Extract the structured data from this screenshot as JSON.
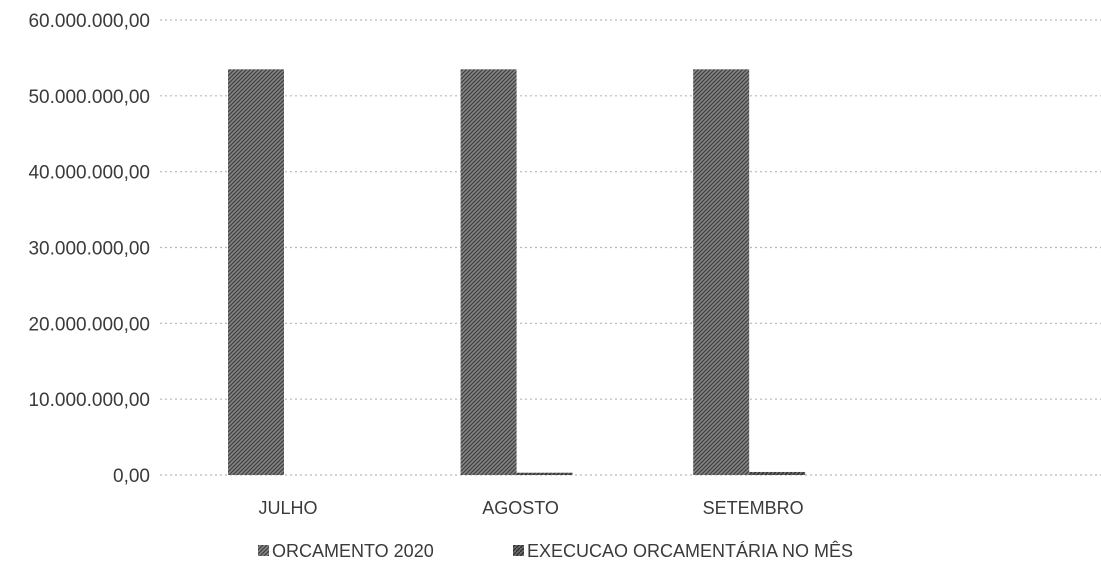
{
  "chart_data": {
    "type": "bar",
    "categories": [
      "JULHO",
      "AGOSTO",
      "SETEMBRO"
    ],
    "series": [
      {
        "name": "ORCAMENTO 2020",
        "values": [
          53500000,
          53500000,
          53500000
        ],
        "color": "#6e6e6e"
      },
      {
        "name": "EXECUCAO ORCAMENTÁRIA NO MÊS",
        "values": [
          0,
          300000,
          400000
        ],
        "color": "#4a4a4a"
      }
    ],
    "yticks": [
      "0,00",
      "10.000.000,00",
      "20.000.000,00",
      "30.000.000,00",
      "40.000.000,00",
      "50.000.000,00",
      "60.000.000,00"
    ],
    "ylim": [
      0,
      60000000
    ],
    "grid": true,
    "legend_position": "bottom"
  }
}
